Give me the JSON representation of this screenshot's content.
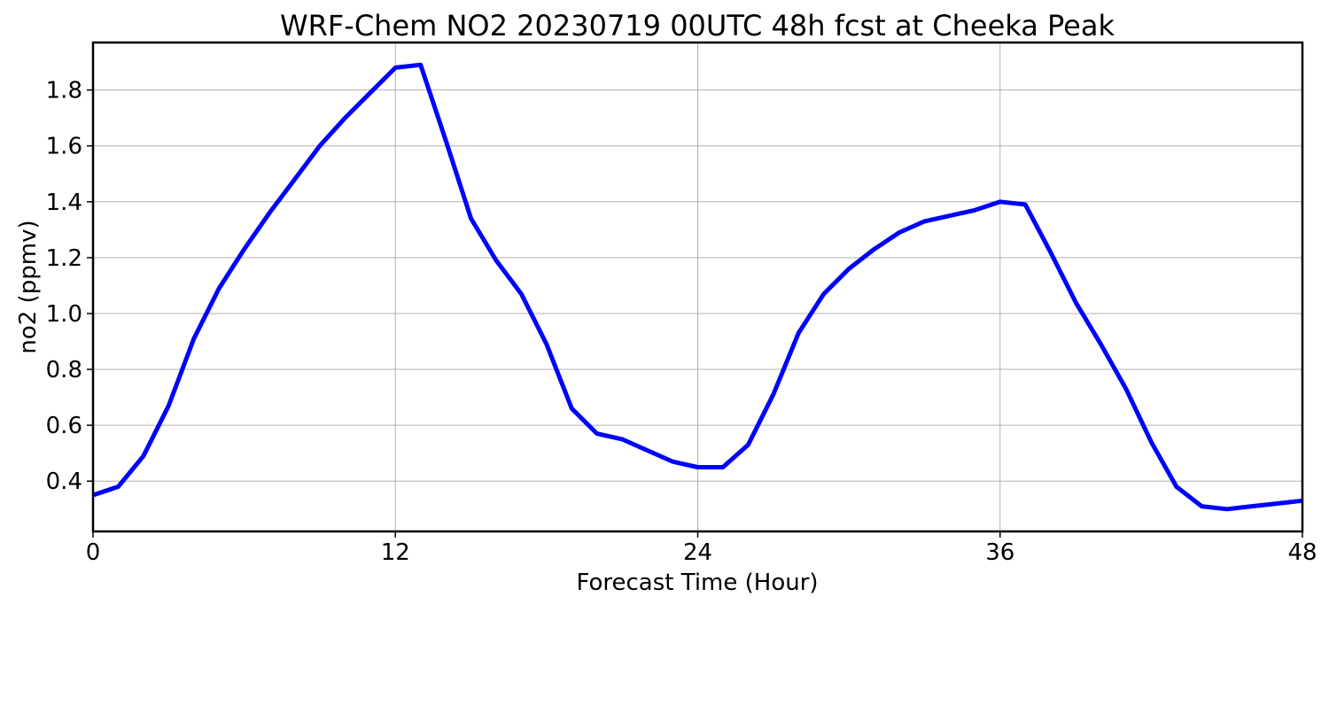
{
  "chart_data": {
    "type": "line",
    "title": "WRF-Chem NO2  20230719 00UTC 48h fcst at Cheeka Peak",
    "xlabel": "Forecast Time (Hour)",
    "ylabel": "no2  (ppmv)",
    "xlim": [
      0,
      48
    ],
    "ylim": [
      0.22,
      1.97
    ],
    "xticks": [
      0,
      12,
      24,
      36,
      48
    ],
    "yticks": [
      0.4,
      0.6,
      0.8,
      1.0,
      1.2,
      1.4,
      1.6,
      1.8
    ],
    "grid": true,
    "legend": "none",
    "series": [
      {
        "color": "#0000ff",
        "x": [
          0,
          1,
          2,
          3,
          4,
          5,
          6,
          7,
          8,
          9,
          10,
          11,
          12,
          13,
          14,
          15,
          16,
          17,
          18,
          19,
          20,
          21,
          22,
          23,
          24,
          25,
          26,
          27,
          28,
          29,
          30,
          31,
          32,
          33,
          34,
          35,
          36,
          37,
          38,
          39,
          40,
          41,
          42,
          43,
          44,
          45,
          46,
          47,
          48
        ],
        "y": [
          0.35,
          0.38,
          0.49,
          0.67,
          0.91,
          1.09,
          1.23,
          1.36,
          1.48,
          1.6,
          1.7,
          1.79,
          1.88,
          1.89,
          1.62,
          1.34,
          1.19,
          1.07,
          0.89,
          0.66,
          0.57,
          0.55,
          0.51,
          0.47,
          0.45,
          0.45,
          0.53,
          0.71,
          0.93,
          1.07,
          1.16,
          1.23,
          1.29,
          1.33,
          1.35,
          1.37,
          1.4,
          1.39,
          1.22,
          1.04,
          0.89,
          0.73,
          0.54,
          0.38,
          0.31,
          0.3,
          0.31,
          0.32,
          0.33
        ]
      }
    ]
  }
}
